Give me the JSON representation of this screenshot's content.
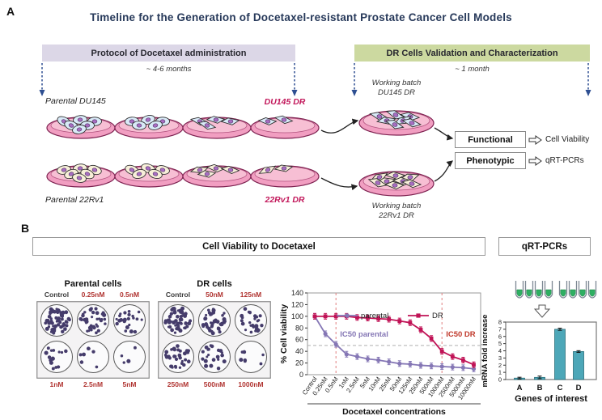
{
  "colors": {
    "title_navy": "#27395a",
    "protocol_bar_bg": "#dcd7e7",
    "validation_bar_bg": "#ccd9a0",
    "dr_label_crimson": "#c2185b",
    "concentration_red": "#b03431",
    "timeline_arrow_blue": "#2e4f92",
    "parental_series_purple": "#8577b5",
    "dr_series_crimson": "#c01356",
    "ic50_dr_text": "#c0392b",
    "bar_teal": "#4da7b8",
    "tube_green": "#2eaf62",
    "well_dot_indigo": "#453c6b"
  },
  "panel_a": {
    "label": "A",
    "title": "Timeline for the Generation of Docetaxel-resistant Prostate Cancer Cell Models",
    "protocol_bar": {
      "label": "Protocol of Docetaxel administration",
      "duration": "~ 4-6 months"
    },
    "validation_bar": {
      "label": "DR Cells Validation and Characterization",
      "duration": "~ 1 month"
    },
    "rows": [
      {
        "parental_label": "Parental DU145",
        "dr_label": "DU145 DR",
        "working_batch_line1": "Working batch",
        "working_batch_line2": "DU145 DR",
        "cell_type": "du145",
        "dish_cell_counts": [
          6,
          5,
          4,
          2
        ],
        "working_batch_cell_count": 7
      },
      {
        "parental_label": "Parental 22Rv1",
        "dr_label": "22Rv1 DR",
        "working_batch_line1": "Working batch",
        "working_batch_line2": "22Rv1 DR",
        "cell_type": "22rv1",
        "dish_cell_counts": [
          6,
          5,
          4,
          2
        ],
        "working_batch_cell_count": 8
      }
    ],
    "outputs": [
      {
        "category": "Functional",
        "assay": "Cell Viability"
      },
      {
        "category": "Phenotypic",
        "assay": "qRT-PCRs"
      }
    ]
  },
  "panel_b": {
    "label": "B",
    "viability_header": "Cell Viability to Docetaxel",
    "qrtpcr_header": "qRT-PCRs",
    "plates": [
      {
        "title": "Parental cells",
        "top_labels": [
          "Control",
          "0.25nM",
          "0.5nM"
        ],
        "bottom_labels": [
          "1nM",
          "2.5nM",
          "5nM"
        ],
        "well_cell_counts": [
          58,
          38,
          22,
          14,
          7,
          4
        ]
      },
      {
        "title": "DR cells",
        "top_labels": [
          "Control",
          "50nM",
          "125nM"
        ],
        "bottom_labels": [
          "250nM",
          "500nM",
          "1000nM"
        ],
        "well_cell_counts": [
          58,
          42,
          28,
          34,
          22,
          7
        ]
      }
    ]
  },
  "chart_data": [
    {
      "type": "line",
      "xlabel": "Docetaxel concentrations",
      "ylabel": "% Cell viability",
      "ylim": [
        0,
        140
      ],
      "yticks": [
        0,
        20,
        40,
        60,
        80,
        100,
        120,
        140
      ],
      "categories": [
        "Control",
        "0.25nM",
        "0.5nM",
        "1nM",
        "2.5nM",
        "5nM",
        "10nM",
        "25nM",
        "50nM",
        "125nM",
        "250nM",
        "500nM",
        "1000nM",
        "2500nM",
        "5000nM",
        "10000nM"
      ],
      "series": [
        {
          "name": "parental",
          "color": "#8577b5",
          "marker": "circle",
          "values": [
            100,
            70,
            52,
            35,
            31,
            27,
            25,
            22,
            19,
            18,
            16,
            15,
            14,
            13,
            12,
            10
          ]
        },
        {
          "name": "DR",
          "color": "#c01356",
          "marker": "square",
          "values": [
            100,
            100,
            100,
            100,
            98,
            97,
            96,
            95,
            92,
            89,
            77,
            62,
            40,
            31,
            25,
            17
          ]
        }
      ],
      "legend_position": "top-inside",
      "grid": false,
      "reference_lines": {
        "horizontal_at": 50,
        "vertical_at_categories": [
          "0.5nM",
          "1000nM"
        ]
      },
      "annotations": [
        {
          "text": "IC50 parental",
          "color": "#8577b5",
          "anchor_category": "0.5nM"
        },
        {
          "text": "IC50 DR",
          "color": "#c0392b",
          "anchor_category": "1000nM"
        }
      ]
    },
    {
      "type": "bar",
      "xlabel": "Genes of interest",
      "ylabel": "mRNA fold increase",
      "ylim": [
        0,
        8
      ],
      "yticks": [
        0,
        1,
        2,
        3,
        4,
        5,
        6,
        7,
        8
      ],
      "categories": [
        "A",
        "B",
        "C",
        "D"
      ],
      "values": [
        0.2,
        0.3,
        7.0,
        3.9
      ],
      "error_bars": [
        0.12,
        0.18,
        0.15,
        0.12
      ],
      "bar_color": "#4da7b8",
      "grid": false
    }
  ]
}
